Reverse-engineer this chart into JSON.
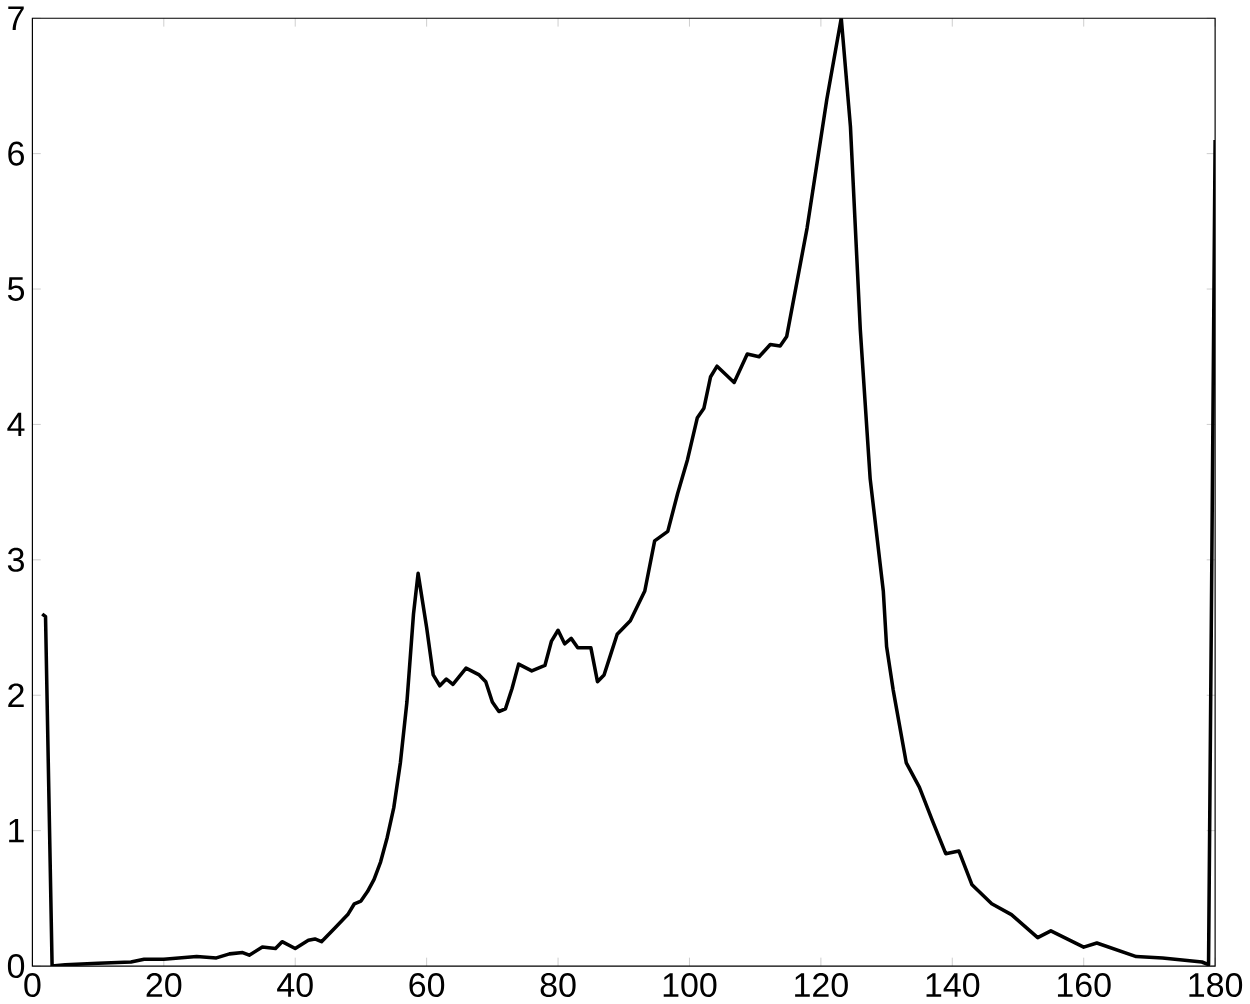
{
  "chart_data": {
    "type": "line",
    "xlim": [
      0,
      180
    ],
    "ylim": [
      0,
      7
    ],
    "xticks": [
      0,
      20,
      40,
      60,
      80,
      100,
      120,
      140,
      160,
      180
    ],
    "yticks": [
      0,
      1,
      2,
      3,
      4,
      5,
      6,
      7
    ],
    "series": [
      {
        "color": "#000000",
        "x": [
          1.5,
          2,
          3,
          5,
          10,
          15,
          17,
          20,
          25,
          28,
          30,
          32,
          33,
          35,
          37,
          38,
          40,
          42,
          43,
          44,
          46,
          48,
          49,
          50,
          51,
          52,
          53,
          54,
          55,
          56,
          57,
          58,
          58.7,
          60,
          61,
          62,
          63,
          64,
          66,
          68,
          69,
          70,
          71,
          72,
          73,
          74,
          76,
          78,
          79,
          80,
          81,
          82,
          83,
          85,
          86,
          87,
          88,
          89,
          91,
          93.2,
          94.7,
          96.7,
          98.2,
          99.7,
          101.2,
          102.2,
          103.2,
          104.2,
          106.8,
          108.8,
          110.6,
          112.3,
          113.8,
          114.8,
          117.9,
          120.9,
          123.1,
          124.5,
          126,
          127.5,
          129.5,
          130,
          131,
          133,
          135,
          137,
          139,
          141,
          143,
          146,
          149,
          153,
          155,
          160,
          162,
          168,
          172,
          178,
          179,
          179.5,
          180
        ],
        "values": [
          2.6,
          2.58,
          0,
          0.01,
          0.02,
          0.03,
          0.05,
          0.05,
          0.07,
          0.06,
          0.09,
          0.1,
          0.08,
          0.14,
          0.13,
          0.18,
          0.13,
          0.19,
          0.2,
          0.18,
          0.28,
          0.38,
          0.46,
          0.48,
          0.55,
          0.64,
          0.77,
          0.95,
          1.17,
          1.5,
          1.95,
          2.6,
          2.9,
          2.5,
          2.15,
          2.07,
          2.12,
          2.08,
          2.2,
          2.15,
          2.1,
          1.95,
          1.88,
          1.9,
          2.05,
          2.23,
          2.18,
          2.22,
          2.4,
          2.48,
          2.38,
          2.42,
          2.35,
          2.35,
          2.1,
          2.15,
          2.3,
          2.45,
          2.55,
          2.77,
          3.14,
          3.21,
          3.49,
          3.74,
          4.05,
          4.12,
          4.35,
          4.43,
          4.31,
          4.52,
          4.5,
          4.59,
          4.58,
          4.65,
          5.45,
          6.4,
          7.0,
          6.2,
          4.7,
          3.6,
          2.77,
          2.36,
          2.04,
          1.5,
          1.32,
          1.07,
          0.83,
          0.85,
          0.6,
          0.46,
          0.38,
          0.21,
          0.26,
          0.14,
          0.17,
          0.07,
          0.06,
          0.03,
          0.01,
          3,
          6.1
        ]
      }
    ]
  }
}
